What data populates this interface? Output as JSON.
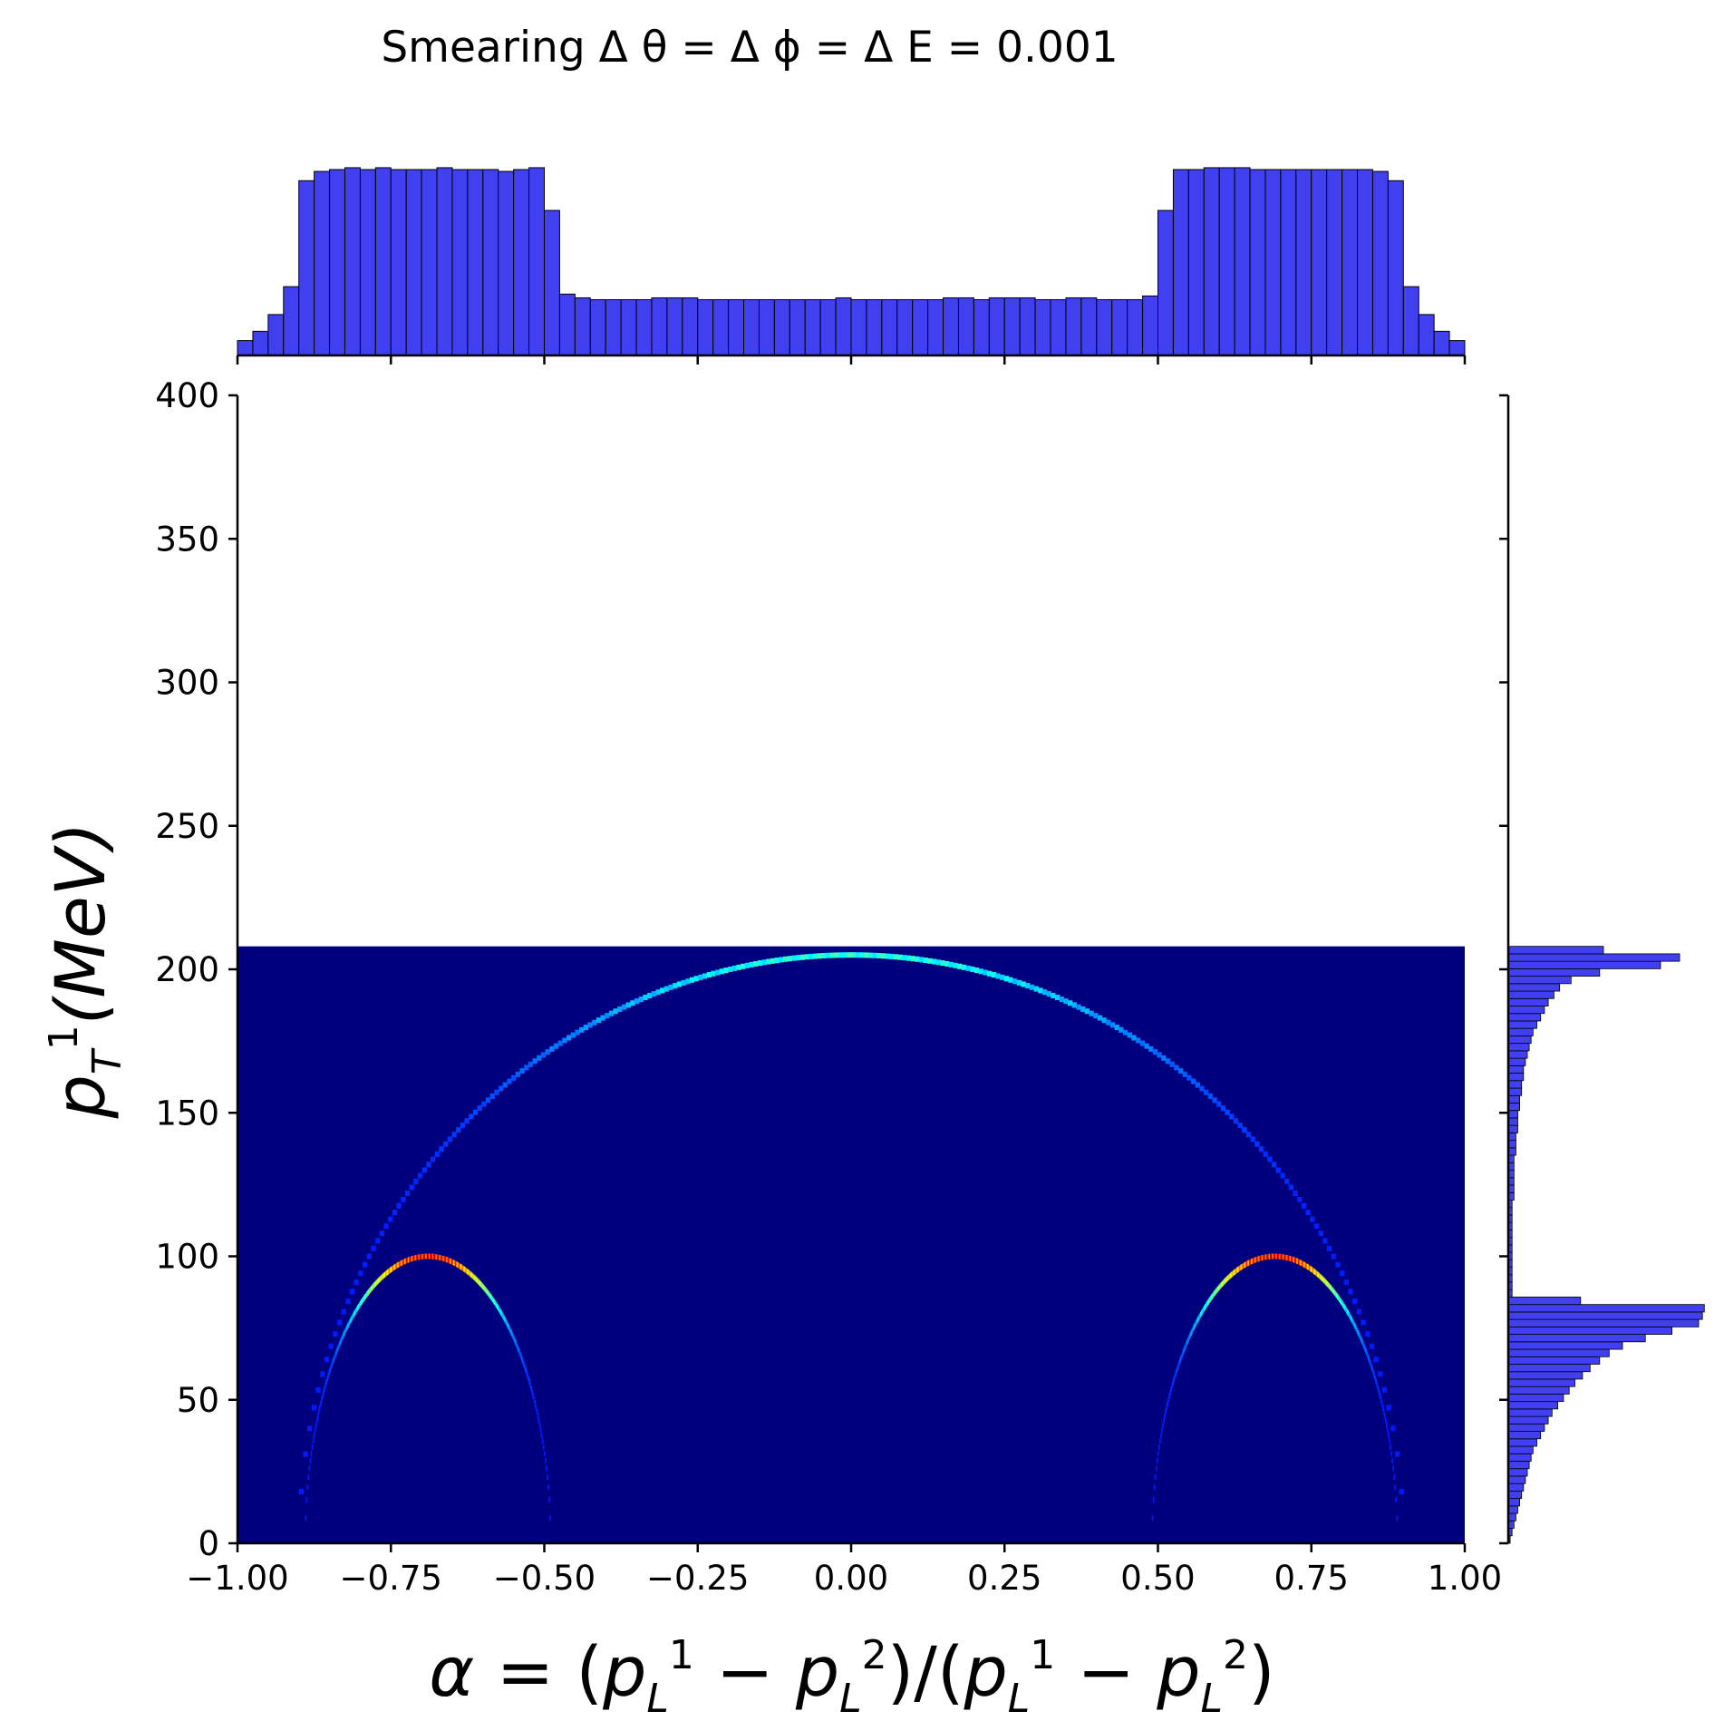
{
  "title": "Smearing Δ θ = Δ ϕ = Δ E = 0.001",
  "colors": {
    "background": "#ffffff",
    "heatmap_base": "#00007f",
    "histogram_fill": "#4040f0",
    "histogram_edge": "#000000",
    "axis": "#000000"
  },
  "chart_data": {
    "type": "heatmap",
    "colormap": "jet",
    "title": "Smearing Δ θ = Δ ϕ = Δ E = 0.001",
    "xlabel": "α = (p_L^1 − p_L^2)/(p_L^1 − p_L^2)",
    "ylabel": "p_T^1(MeV)",
    "xlim": [
      -1.0,
      1.0
    ],
    "ylim": [
      0,
      400
    ],
    "heatmap_extent_y": [
      0,
      208
    ],
    "x_ticks": [
      "−1.00",
      "−0.75",
      "−0.50",
      "−0.25",
      "0.00",
      "0.25",
      "0.50",
      "0.75",
      "1.00"
    ],
    "x_tick_values": [
      -1.0,
      -0.75,
      -0.5,
      -0.25,
      0.0,
      0.25,
      0.5,
      0.75,
      1.0
    ],
    "y_ticks": [
      "0",
      "50",
      "100",
      "150",
      "200",
      "250",
      "300",
      "350",
      "400"
    ],
    "y_tick_values": [
      0,
      50,
      100,
      150,
      200,
      250,
      300,
      350,
      400
    ],
    "grid": false,
    "arcs": [
      {
        "name": "small-left",
        "center_alpha": -0.69,
        "half_width_alpha": 0.2,
        "peak_pT": 100,
        "peak_intensity": 1.0
      },
      {
        "name": "small-right",
        "center_alpha": 0.69,
        "half_width_alpha": 0.2,
        "peak_pT": 100,
        "peak_intensity": 1.0
      },
      {
        "name": "large",
        "center_alpha": 0.0,
        "half_width_alpha": 0.9,
        "peak_pT": 205,
        "peak_intensity": 0.35
      }
    ],
    "marginal_x": {
      "type": "bar",
      "bin_edges_range": [
        -1.0,
        1.0
      ],
      "bins": 80,
      "values": [
        0.08,
        0.13,
        0.22,
        0.37,
        0.94,
        0.99,
        1.0,
        1.01,
        1.0,
        1.01,
        1.0,
        1.0,
        1.0,
        1.01,
        1.0,
        1.0,
        1.0,
        0.99,
        1.0,
        1.01,
        0.78,
        0.33,
        0.31,
        0.3,
        0.3,
        0.3,
        0.3,
        0.31,
        0.31,
        0.31,
        0.3,
        0.3,
        0.3,
        0.3,
        0.3,
        0.3,
        0.3,
        0.3,
        0.3,
        0.31,
        0.3,
        0.3,
        0.3,
        0.3,
        0.3,
        0.3,
        0.31,
        0.31,
        0.3,
        0.31,
        0.31,
        0.31,
        0.3,
        0.3,
        0.31,
        0.31,
        0.3,
        0.3,
        0.3,
        0.32,
        0.78,
        1.0,
        1.0,
        1.01,
        1.01,
        1.01,
        1.0,
        1.0,
        1.0,
        1.0,
        1.0,
        1.0,
        1.0,
        1.0,
        0.99,
        0.94,
        0.37,
        0.22,
        0.13,
        0.08
      ]
    },
    "marginal_y": {
      "type": "bar",
      "orientation": "horizontal",
      "bin_range": [
        0,
        208
      ],
      "bins": 80,
      "values": [
        0.01,
        0.02,
        0.03,
        0.04,
        0.05,
        0.06,
        0.07,
        0.08,
        0.09,
        0.1,
        0.11,
        0.12,
        0.13,
        0.15,
        0.17,
        0.19,
        0.21,
        0.23,
        0.26,
        0.29,
        0.32,
        0.35,
        0.39,
        0.43,
        0.48,
        0.53,
        0.6,
        0.72,
        0.86,
        1.0,
        1.02,
        1.03,
        0.38,
        0.02,
        0.02,
        0.02,
        0.02,
        0.02,
        0.02,
        0.02,
        0.02,
        0.02,
        0.02,
        0.02,
        0.02,
        0.02,
        0.03,
        0.03,
        0.03,
        0.03,
        0.03,
        0.03,
        0.04,
        0.04,
        0.04,
        0.05,
        0.05,
        0.05,
        0.06,
        0.06,
        0.07,
        0.07,
        0.08,
        0.08,
        0.09,
        0.1,
        0.11,
        0.12,
        0.13,
        0.15,
        0.17,
        0.19,
        0.21,
        0.24,
        0.27,
        0.33,
        0.48,
        0.8,
        0.9,
        0.5
      ]
    }
  }
}
